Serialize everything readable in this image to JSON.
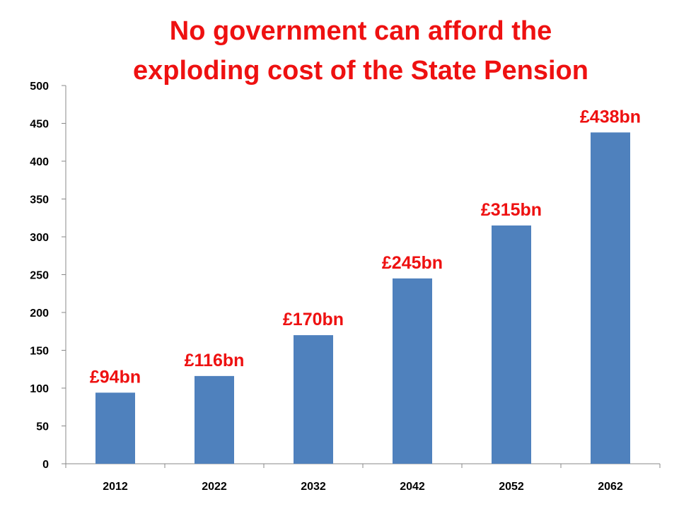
{
  "chart_data": {
    "type": "bar",
    "title_lines": [
      "No government can afford the",
      "exploding cost of the State Pension"
    ],
    "categories": [
      "2012",
      "2022",
      "2032",
      "2042",
      "2052",
      "2062"
    ],
    "values": [
      94,
      116,
      170,
      245,
      315,
      438
    ],
    "data_labels": [
      "£94bn",
      "£116bn",
      "£170bn",
      "£245bn",
      "£315bn",
      "£438bn"
    ],
    "ylim": [
      0,
      500
    ],
    "yticks": [
      0,
      50,
      100,
      150,
      200,
      250,
      300,
      350,
      400,
      450,
      500
    ],
    "xlabel": "",
    "ylabel": "",
    "grid": false,
    "legend": "none",
    "colors": {
      "bar": "#4f81bd",
      "title": "#ee1111",
      "data_label": "#ee1111",
      "axis": "#888888"
    }
  }
}
